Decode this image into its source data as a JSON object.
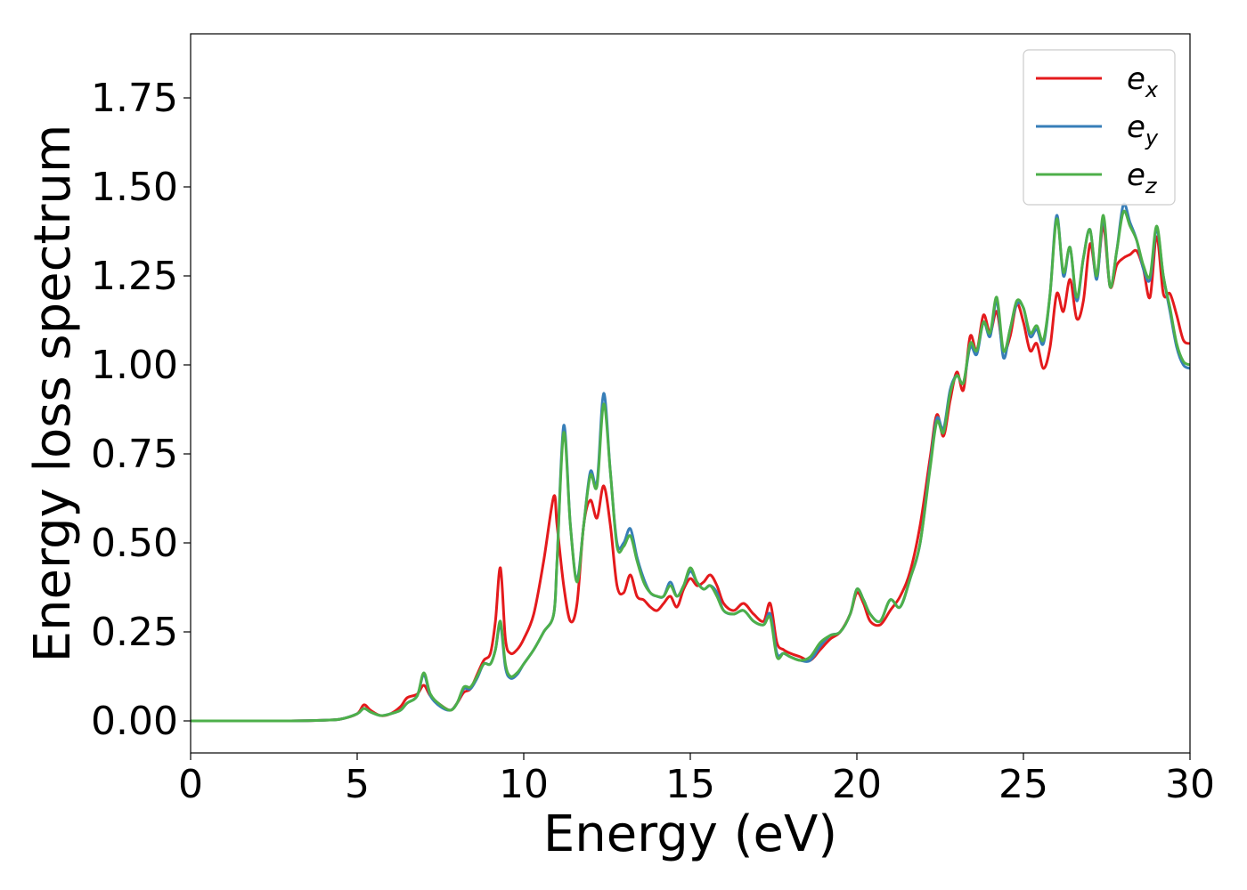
{
  "chart_data": {
    "type": "line",
    "title": "",
    "xlabel": "Energy (eV)",
    "ylabel": "Energy loss spectrum",
    "xlim": [
      0,
      30
    ],
    "ylim": [
      -0.09,
      1.93
    ],
    "xticks": [
      0,
      5,
      10,
      15,
      20,
      25,
      30
    ],
    "xtick_labels": [
      "0",
      "5",
      "10",
      "15",
      "20",
      "25",
      "30"
    ],
    "yticks": [
      0.0,
      0.25,
      0.5,
      0.75,
      1.0,
      1.25,
      1.5,
      1.75
    ],
    "ytick_labels": [
      "0.00",
      "0.25",
      "0.50",
      "0.75",
      "1.00",
      "1.25",
      "1.50",
      "1.75"
    ],
    "grid": false,
    "legend_position": "top-right",
    "series": [
      {
        "name": "e_x",
        "color": "#e41a1c",
        "x": [
          0,
          1,
          2,
          3,
          4,
          4.5,
          5,
          5.2,
          5.4,
          5.7,
          6,
          6.3,
          6.5,
          6.8,
          7.0,
          7.2,
          7.5,
          7.8,
          8.0,
          8.2,
          8.4,
          8.6,
          8.8,
          9.0,
          9.15,
          9.3,
          9.45,
          9.6,
          9.8,
          10,
          10.3,
          10.6,
          10.9,
          11.0,
          11.2,
          11.4,
          11.6,
          11.8,
          12.0,
          12.2,
          12.4,
          12.6,
          12.8,
          13.0,
          13.2,
          13.4,
          13.6,
          13.8,
          14.0,
          14.2,
          14.4,
          14.6,
          14.8,
          15.0,
          15.2,
          15.4,
          15.6,
          15.8,
          16.0,
          16.3,
          16.6,
          16.9,
          17.2,
          17.4,
          17.6,
          17.8,
          18.0,
          18.3,
          18.6,
          18.9,
          19.2,
          19.5,
          19.8,
          20.0,
          20.2,
          20.4,
          20.7,
          21.0,
          21.3,
          21.6,
          21.9,
          22.2,
          22.4,
          22.6,
          22.8,
          23.0,
          23.2,
          23.4,
          23.6,
          23.8,
          24.0,
          24.2,
          24.4,
          24.6,
          24.8,
          25.0,
          25.2,
          25.4,
          25.6,
          25.8,
          26.0,
          26.2,
          26.4,
          26.6,
          26.8,
          27.0,
          27.2,
          27.4,
          27.6,
          27.8,
          28.0,
          28.2,
          28.4,
          28.6,
          28.8,
          29.0,
          29.2,
          29.4,
          29.6,
          29.8,
          30.0
        ],
        "y": [
          0.0,
          0.0,
          0.0,
          0.0,
          0.002,
          0.005,
          0.02,
          0.045,
          0.03,
          0.015,
          0.02,
          0.04,
          0.065,
          0.075,
          0.1,
          0.07,
          0.045,
          0.03,
          0.05,
          0.08,
          0.09,
          0.13,
          0.17,
          0.19,
          0.28,
          0.43,
          0.23,
          0.19,
          0.2,
          0.23,
          0.3,
          0.45,
          0.63,
          0.55,
          0.38,
          0.28,
          0.33,
          0.55,
          0.62,
          0.57,
          0.66,
          0.55,
          0.38,
          0.36,
          0.41,
          0.35,
          0.34,
          0.32,
          0.31,
          0.33,
          0.35,
          0.32,
          0.37,
          0.4,
          0.38,
          0.39,
          0.41,
          0.38,
          0.33,
          0.31,
          0.33,
          0.3,
          0.28,
          0.33,
          0.22,
          0.2,
          0.19,
          0.18,
          0.17,
          0.2,
          0.23,
          0.25,
          0.3,
          0.36,
          0.33,
          0.28,
          0.27,
          0.31,
          0.35,
          0.42,
          0.55,
          0.74,
          0.86,
          0.8,
          0.9,
          0.98,
          0.93,
          1.08,
          1.04,
          1.14,
          1.09,
          1.15,
          1.04,
          1.08,
          1.17,
          1.12,
          1.04,
          1.06,
          0.99,
          1.05,
          1.2,
          1.15,
          1.24,
          1.13,
          1.18,
          1.34,
          1.25,
          1.39,
          1.22,
          1.28,
          1.3,
          1.31,
          1.32,
          1.27,
          1.19,
          1.36,
          1.2,
          1.2,
          1.14,
          1.07,
          1.06
        ]
      },
      {
        "name": "e_y",
        "color": "#377eb8",
        "x": [
          0,
          1,
          2,
          3,
          4,
          4.5,
          5,
          5.2,
          5.4,
          5.7,
          6,
          6.3,
          6.5,
          6.8,
          7.0,
          7.2,
          7.5,
          7.8,
          8.0,
          8.2,
          8.4,
          8.6,
          8.8,
          9.0,
          9.15,
          9.3,
          9.45,
          9.6,
          9.8,
          10,
          10.3,
          10.6,
          10.9,
          11.0,
          11.2,
          11.4,
          11.6,
          11.8,
          12.0,
          12.2,
          12.4,
          12.6,
          12.8,
          13.0,
          13.2,
          13.4,
          13.6,
          13.8,
          14.0,
          14.2,
          14.4,
          14.6,
          14.8,
          15.0,
          15.2,
          15.4,
          15.6,
          15.8,
          16.0,
          16.3,
          16.6,
          16.9,
          17.2,
          17.4,
          17.6,
          17.8,
          18.0,
          18.3,
          18.6,
          18.9,
          19.2,
          19.5,
          19.8,
          20.0,
          20.2,
          20.4,
          20.7,
          21.0,
          21.3,
          21.6,
          21.9,
          22.2,
          22.4,
          22.6,
          22.8,
          23.0,
          23.2,
          23.4,
          23.6,
          23.8,
          24.0,
          24.2,
          24.4,
          24.6,
          24.8,
          25.0,
          25.2,
          25.4,
          25.6,
          25.8,
          26.0,
          26.2,
          26.4,
          26.6,
          26.8,
          27.0,
          27.2,
          27.4,
          27.6,
          27.8,
          28.0,
          28.2,
          28.4,
          28.6,
          28.8,
          29.0,
          29.2,
          29.4,
          29.6,
          29.8,
          30.0
        ],
        "y": [
          0.0,
          0.0,
          0.0,
          0.0,
          0.002,
          0.005,
          0.02,
          0.035,
          0.025,
          0.015,
          0.02,
          0.03,
          0.05,
          0.07,
          0.13,
          0.07,
          0.04,
          0.03,
          0.05,
          0.09,
          0.09,
          0.12,
          0.16,
          0.16,
          0.2,
          0.27,
          0.15,
          0.12,
          0.13,
          0.16,
          0.2,
          0.25,
          0.3,
          0.45,
          0.83,
          0.55,
          0.4,
          0.55,
          0.7,
          0.67,
          0.92,
          0.7,
          0.5,
          0.5,
          0.54,
          0.46,
          0.4,
          0.36,
          0.35,
          0.35,
          0.39,
          0.35,
          0.38,
          0.42,
          0.39,
          0.37,
          0.38,
          0.36,
          0.31,
          0.3,
          0.31,
          0.28,
          0.27,
          0.3,
          0.19,
          0.19,
          0.18,
          0.17,
          0.17,
          0.21,
          0.24,
          0.25,
          0.3,
          0.37,
          0.34,
          0.3,
          0.28,
          0.34,
          0.32,
          0.4,
          0.5,
          0.72,
          0.85,
          0.82,
          0.93,
          0.97,
          0.95,
          1.05,
          1.03,
          1.12,
          1.08,
          1.18,
          1.02,
          1.1,
          1.17,
          1.16,
          1.08,
          1.1,
          1.06,
          1.2,
          1.42,
          1.25,
          1.33,
          1.18,
          1.3,
          1.38,
          1.24,
          1.41,
          1.22,
          1.32,
          1.45,
          1.4,
          1.35,
          1.27,
          1.24,
          1.38,
          1.25,
          1.15,
          1.05,
          1.0,
          0.99
        ]
      },
      {
        "name": "e_z",
        "color": "#4daf4a",
        "x": [
          0,
          1,
          2,
          3,
          4,
          4.5,
          5,
          5.2,
          5.4,
          5.7,
          6,
          6.3,
          6.5,
          6.8,
          7.0,
          7.2,
          7.5,
          7.8,
          8.0,
          8.2,
          8.4,
          8.6,
          8.8,
          9.0,
          9.15,
          9.3,
          9.45,
          9.6,
          9.8,
          10,
          10.3,
          10.6,
          10.9,
          11.0,
          11.2,
          11.4,
          11.6,
          11.8,
          12.0,
          12.2,
          12.4,
          12.6,
          12.8,
          13.0,
          13.2,
          13.4,
          13.6,
          13.8,
          14.0,
          14.2,
          14.4,
          14.6,
          14.8,
          15.0,
          15.2,
          15.4,
          15.6,
          15.8,
          16.0,
          16.3,
          16.6,
          16.9,
          17.2,
          17.4,
          17.6,
          17.8,
          18.0,
          18.3,
          18.6,
          18.9,
          19.2,
          19.5,
          19.8,
          20.0,
          20.2,
          20.4,
          20.7,
          21.0,
          21.3,
          21.6,
          21.9,
          22.2,
          22.4,
          22.6,
          22.8,
          23.0,
          23.2,
          23.4,
          23.6,
          23.8,
          24.0,
          24.2,
          24.4,
          24.6,
          24.8,
          25.0,
          25.2,
          25.4,
          25.6,
          25.8,
          26.0,
          26.2,
          26.4,
          26.6,
          26.8,
          27.0,
          27.2,
          27.4,
          27.6,
          27.8,
          28.0,
          28.2,
          28.4,
          28.6,
          28.8,
          29.0,
          29.2,
          29.4,
          29.6,
          29.8,
          30.0
        ],
        "y": [
          0.0,
          0.0,
          0.0,
          0.0,
          0.002,
          0.005,
          0.02,
          0.035,
          0.025,
          0.015,
          0.02,
          0.03,
          0.05,
          0.07,
          0.135,
          0.075,
          0.045,
          0.03,
          0.05,
          0.095,
          0.095,
          0.125,
          0.16,
          0.16,
          0.2,
          0.28,
          0.16,
          0.125,
          0.135,
          0.16,
          0.2,
          0.25,
          0.3,
          0.45,
          0.81,
          0.55,
          0.39,
          0.55,
          0.69,
          0.66,
          0.89,
          0.7,
          0.49,
          0.49,
          0.52,
          0.45,
          0.39,
          0.36,
          0.35,
          0.35,
          0.38,
          0.35,
          0.38,
          0.43,
          0.39,
          0.37,
          0.38,
          0.35,
          0.31,
          0.3,
          0.31,
          0.28,
          0.27,
          0.29,
          0.18,
          0.19,
          0.18,
          0.17,
          0.18,
          0.22,
          0.24,
          0.25,
          0.3,
          0.37,
          0.34,
          0.3,
          0.28,
          0.34,
          0.32,
          0.4,
          0.5,
          0.71,
          0.84,
          0.81,
          0.92,
          0.97,
          0.95,
          1.06,
          1.04,
          1.12,
          1.09,
          1.19,
          1.04,
          1.1,
          1.18,
          1.16,
          1.09,
          1.11,
          1.07,
          1.2,
          1.41,
          1.26,
          1.33,
          1.19,
          1.3,
          1.38,
          1.25,
          1.42,
          1.22,
          1.32,
          1.43,
          1.39,
          1.35,
          1.28,
          1.25,
          1.39,
          1.25,
          1.16,
          1.06,
          1.01,
          1.0
        ]
      }
    ]
  },
  "legend": {
    "items": [
      {
        "base": "e",
        "sub": "x",
        "color": "#e41a1c"
      },
      {
        "base": "e",
        "sub": "y",
        "color": "#377eb8"
      },
      {
        "base": "e",
        "sub": "z",
        "color": "#4daf4a"
      }
    ]
  }
}
